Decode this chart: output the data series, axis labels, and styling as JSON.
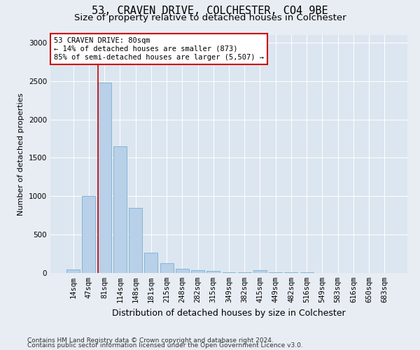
{
  "title1": "53, CRAVEN DRIVE, COLCHESTER, CO4 9BE",
  "title2": "Size of property relative to detached houses in Colchester",
  "xlabel": "Distribution of detached houses by size in Colchester",
  "ylabel": "Number of detached properties",
  "footnote1": "Contains HM Land Registry data © Crown copyright and database right 2024.",
  "footnote2": "Contains public sector information licensed under the Open Government Licence v3.0.",
  "annotation_title": "53 CRAVEN DRIVE: 80sqm",
  "annotation_line1": "← 14% of detached houses are smaller (873)",
  "annotation_line2": "85% of semi-detached houses are larger (5,507) →",
  "categories": [
    "14sqm",
    "47sqm",
    "81sqm",
    "114sqm",
    "148sqm",
    "181sqm",
    "215sqm",
    "248sqm",
    "282sqm",
    "315sqm",
    "349sqm",
    "382sqm",
    "415sqm",
    "449sqm",
    "482sqm",
    "516sqm",
    "549sqm",
    "583sqm",
    "616sqm",
    "650sqm",
    "683sqm"
  ],
  "values": [
    50,
    1000,
    2480,
    1650,
    850,
    260,
    130,
    55,
    40,
    25,
    10,
    5,
    35,
    5,
    5,
    5,
    0,
    0,
    0,
    0,
    0
  ],
  "bar_color": "#b8d0e8",
  "bar_edge_color": "#7aafd4",
  "vline_color": "#cc0000",
  "annotation_box_color": "#cc0000",
  "background_color": "#e8edf4",
  "plot_bg_color": "#dce6f0",
  "ylim": [
    0,
    3100
  ],
  "yticks": [
    0,
    500,
    1000,
    1500,
    2000,
    2500,
    3000
  ],
  "title1_fontsize": 11,
  "title2_fontsize": 9.5,
  "xlabel_fontsize": 9,
  "ylabel_fontsize": 8,
  "tick_fontsize": 7.5,
  "annot_fontsize": 7.5,
  "footnote_fontsize": 6.5
}
